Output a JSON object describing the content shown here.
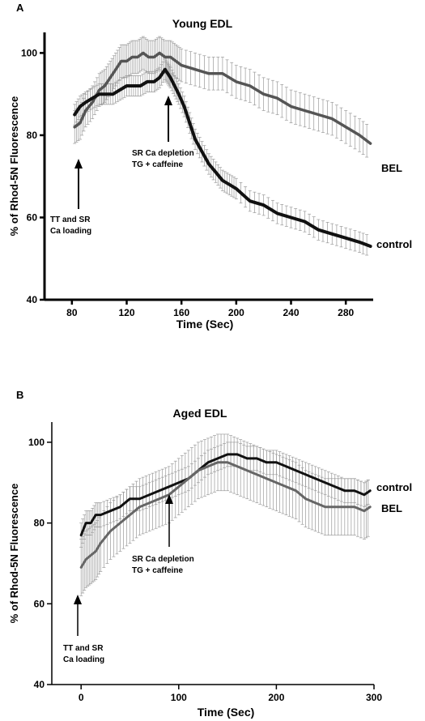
{
  "chart_data": [
    {
      "panel_label": "A",
      "type": "line",
      "title": "Young EDL",
      "xlabel": "Time (Sec)",
      "ylabel": "% of Rhod-5N Fluorescence",
      "xlim": [
        60,
        300
      ],
      "ylim": [
        40,
        105
      ],
      "x_ticks": [
        80,
        120,
        160,
        200,
        240,
        280
      ],
      "y_ticks": [
        40,
        60,
        80,
        100
      ],
      "grid": false,
      "series": [
        {
          "name": "BEL",
          "color": "#555555",
          "error": 4,
          "points": [
            [
              82,
              82
            ],
            [
              86,
              83
            ],
            [
              90,
              86
            ],
            [
              95,
              88
            ],
            [
              100,
              91
            ],
            [
              104,
              92
            ],
            [
              108,
              94
            ],
            [
              112,
              96
            ],
            [
              116,
              98
            ],
            [
              120,
              98
            ],
            [
              124,
              99
            ],
            [
              128,
              99
            ],
            [
              132,
              100
            ],
            [
              136,
              99
            ],
            [
              140,
              99
            ],
            [
              144,
              100
            ],
            [
              148,
              99
            ],
            [
              152,
              99
            ],
            [
              156,
              98
            ],
            [
              160,
              97
            ],
            [
              170,
              96
            ],
            [
              180,
              95
            ],
            [
              190,
              95
            ],
            [
              200,
              93
            ],
            [
              210,
              92
            ],
            [
              220,
              90
            ],
            [
              230,
              89
            ],
            [
              240,
              87
            ],
            [
              250,
              86
            ],
            [
              260,
              85
            ],
            [
              270,
              84
            ],
            [
              280,
              82
            ],
            [
              290,
              80
            ],
            [
              298,
              78
            ]
          ]
        },
        {
          "name": "control",
          "color": "#111111",
          "error": 2.5,
          "points": [
            [
              82,
              85
            ],
            [
              86,
              87
            ],
            [
              90,
              88
            ],
            [
              95,
              89
            ],
            [
              100,
              90
            ],
            [
              105,
              90
            ],
            [
              110,
              90
            ],
            [
              115,
              91
            ],
            [
              120,
              92
            ],
            [
              125,
              92
            ],
            [
              130,
              92
            ],
            [
              135,
              93
            ],
            [
              140,
              93
            ],
            [
              144,
              94
            ],
            [
              148,
              96
            ],
            [
              150,
              95
            ],
            [
              152,
              94
            ],
            [
              155,
              92
            ],
            [
              158,
              90
            ],
            [
              162,
              87
            ],
            [
              166,
              83
            ],
            [
              170,
              79
            ],
            [
              175,
              76
            ],
            [
              180,
              73
            ],
            [
              185,
              71
            ],
            [
              190,
              69
            ],
            [
              195,
              68
            ],
            [
              200,
              67
            ],
            [
              210,
              64
            ],
            [
              220,
              63
            ],
            [
              230,
              61
            ],
            [
              240,
              60
            ],
            [
              250,
              59
            ],
            [
              260,
              57
            ],
            [
              270,
              56
            ],
            [
              280,
              55
            ],
            [
              290,
              54
            ],
            [
              298,
              53
            ]
          ]
        }
      ],
      "annotations": [
        {
          "lines": [
            "TT and SR",
            "Ca loading"
          ],
          "arrow_at_x": 83
        },
        {
          "lines": [
            "SR Ca depletion",
            "TG + caffeine"
          ],
          "arrow_at_x": 150
        }
      ]
    },
    {
      "panel_label": "B",
      "type": "line",
      "title": "Aged EDL",
      "xlabel": "Time (Sec)",
      "ylabel": "% of Rhod-5N Fluorescence",
      "xlim": [
        -30,
        300
      ],
      "ylim": [
        40,
        105
      ],
      "x_ticks": [
        0,
        100,
        200,
        300
      ],
      "y_ticks": [
        40,
        60,
        80,
        100
      ],
      "grid": false,
      "series": [
        {
          "name": "control",
          "color": "#111111",
          "error": 3,
          "points": [
            [
              0,
              77
            ],
            [
              5,
              80
            ],
            [
              10,
              80
            ],
            [
              15,
              82
            ],
            [
              20,
              82
            ],
            [
              30,
              83
            ],
            [
              40,
              84
            ],
            [
              50,
              86
            ],
            [
              60,
              86
            ],
            [
              70,
              87
            ],
            [
              80,
              88
            ],
            [
              90,
              89
            ],
            [
              100,
              90
            ],
            [
              110,
              91
            ],
            [
              120,
              93
            ],
            [
              130,
              95
            ],
            [
              140,
              96
            ],
            [
              150,
              97
            ],
            [
              160,
              97
            ],
            [
              170,
              96
            ],
            [
              180,
              96
            ],
            [
              190,
              95
            ],
            [
              200,
              95
            ],
            [
              210,
              94
            ],
            [
              220,
              93
            ],
            [
              230,
              92
            ],
            [
              240,
              91
            ],
            [
              250,
              90
            ],
            [
              260,
              89
            ],
            [
              270,
              88
            ],
            [
              280,
              88
            ],
            [
              290,
              87
            ],
            [
              296,
              88
            ]
          ]
        },
        {
          "name": "BEL",
          "color": "#666666",
          "error": 7,
          "points": [
            [
              0,
              69
            ],
            [
              5,
              71
            ],
            [
              10,
              72
            ],
            [
              15,
              73
            ],
            [
              20,
              75
            ],
            [
              30,
              78
            ],
            [
              40,
              80
            ],
            [
              50,
              82
            ],
            [
              60,
              84
            ],
            [
              70,
              85
            ],
            [
              80,
              86
            ],
            [
              90,
              87
            ],
            [
              100,
              89
            ],
            [
              110,
              91
            ],
            [
              120,
              93
            ],
            [
              130,
              94
            ],
            [
              140,
              95
            ],
            [
              150,
              95
            ],
            [
              160,
              94
            ],
            [
              170,
              93
            ],
            [
              180,
              92
            ],
            [
              190,
              91
            ],
            [
              200,
              90
            ],
            [
              210,
              89
            ],
            [
              220,
              88
            ],
            [
              230,
              86
            ],
            [
              240,
              85
            ],
            [
              250,
              84
            ],
            [
              260,
              84
            ],
            [
              270,
              84
            ],
            [
              280,
              84
            ],
            [
              290,
              83
            ],
            [
              296,
              84
            ]
          ]
        }
      ],
      "annotations": [
        {
          "lines": [
            "TT and SR",
            "Ca loading"
          ],
          "arrow_at_x": 0
        },
        {
          "lines": [
            "SR Ca depletion",
            "TG + caffeine"
          ],
          "arrow_at_x": 92
        }
      ]
    }
  ]
}
